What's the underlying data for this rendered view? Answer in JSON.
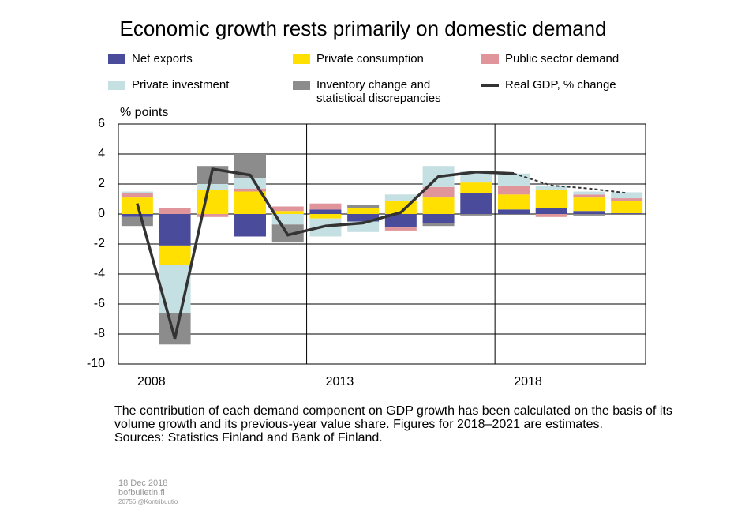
{
  "chart_data": {
    "type": "stacked_bar_line",
    "title": "Economic growth rests primarily on domestic demand",
    "ylabel": "% points",
    "x": [
      2008,
      2009,
      2010,
      2011,
      2012,
      2013,
      2014,
      2015,
      2016,
      2017,
      2018,
      2019,
      2020,
      2021
    ],
    "xlim": [
      2007.5,
      2021.5
    ],
    "xticks": [
      2008,
      2013,
      2018
    ],
    "ylim": [
      -10,
      6
    ],
    "yticks": [
      -10,
      -8,
      -6,
      -4,
      -2,
      0,
      2,
      4,
      6
    ],
    "grid": true,
    "series": [
      {
        "name": "Net exports",
        "color": "#4b4b9b",
        "values": [
          -0.2,
          -2.1,
          0,
          -1.5,
          0,
          0.3,
          -0.5,
          -0.9,
          -0.6,
          1.4,
          0.3,
          0.4,
          0.2,
          0.05
        ]
      },
      {
        "name": "Private consumption",
        "color": "#ffe000",
        "values": [
          1.1,
          -1.3,
          1.6,
          1.5,
          0.2,
          -0.3,
          0.4,
          0.9,
          1.1,
          0.7,
          1.0,
          1.2,
          0.9,
          0.8
        ]
      },
      {
        "name": "Public sector demand",
        "color": "#e0959a",
        "values": [
          0.3,
          0.4,
          -0.2,
          0.2,
          0.3,
          0.4,
          0,
          -0.2,
          0.7,
          0,
          0.6,
          -0.2,
          0.2,
          0.2
        ]
      },
      {
        "name": "Private investment",
        "color": "#c5e0e2",
        "values": [
          0.1,
          -3.2,
          0.4,
          0.7,
          -0.7,
          -1.2,
          -0.7,
          0.4,
          1.4,
          0.8,
          0.8,
          0.3,
          0.2,
          0.4
        ]
      },
      {
        "name": "Inventory change and\nstatistical discrepancies",
        "color": "#8c8c8c",
        "values": [
          -0.6,
          -2.1,
          1.2,
          1.6,
          -1.2,
          0,
          0.2,
          0,
          -0.2,
          -0.1,
          0,
          0,
          -0.1,
          0
        ]
      },
      {
        "name": "Real GDP, % change",
        "color": "#333333",
        "kind": "line",
        "dashed_from_x": 2018,
        "values": [
          0.7,
          -8.3,
          3.0,
          2.6,
          -1.4,
          -0.8,
          -0.6,
          0.1,
          2.5,
          2.8,
          2.7,
          1.9,
          1.7,
          1.4
        ]
      }
    ],
    "note": "The contribution of each demand component on GDP growth has been calculated on the basis of its volume growth and its previous-year value share. Figures for 2018–2021 are estimates.",
    "sources": "Sources: Statistics Finland and Bank of Finland.",
    "footer": [
      "18 Dec 2018",
      "bofbulletin.fi",
      "20756 @Kontribuutio"
    ]
  }
}
